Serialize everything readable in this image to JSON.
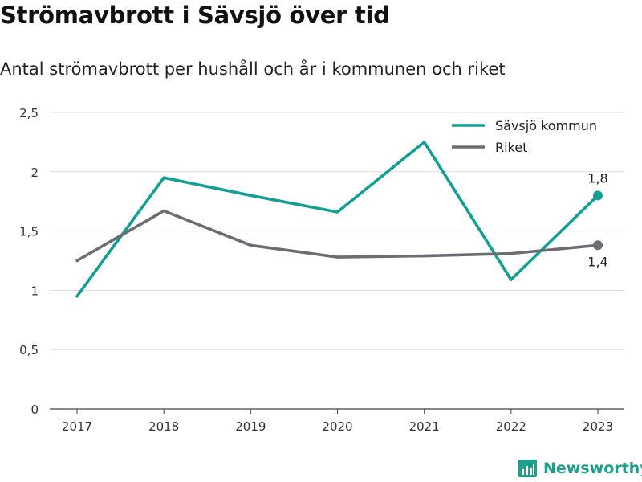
{
  "title": "Strömavbrott i Sävsjö över tid",
  "subtitle": "Antal strömavbrott per hushåll och år i kommunen och riket",
  "brand": "Newsworthy",
  "chart_data": {
    "type": "line",
    "x": [
      "2017",
      "2018",
      "2019",
      "2020",
      "2021",
      "2022",
      "2023"
    ],
    "series": [
      {
        "name": "Sävsjö kommun",
        "color": "#12a094",
        "values": [
          0.95,
          1.95,
          1.8,
          1.66,
          2.25,
          1.09,
          1.8
        ],
        "end_label": "1,8"
      },
      {
        "name": "Riket",
        "color": "#6c6c74",
        "values": [
          1.25,
          1.67,
          1.38,
          1.28,
          1.29,
          1.31,
          1.38
        ],
        "end_label": "1,4"
      }
    ],
    "ylim": [
      0,
      2.5
    ],
    "yticks": [
      0,
      0.5,
      1,
      1.5,
      2,
      2.5
    ],
    "ytick_labels": [
      "0",
      "0,5",
      "1",
      "1,5",
      "2",
      "2,5"
    ],
    "grid": true,
    "legend": "top-right"
  }
}
